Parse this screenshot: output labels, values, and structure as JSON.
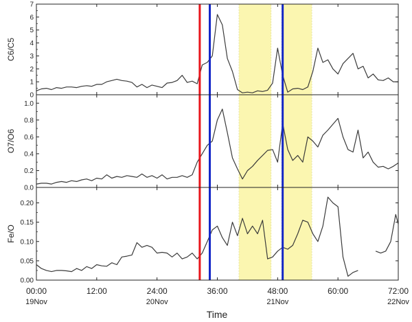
{
  "chart_data": {
    "type": "line",
    "xlabel": "Time",
    "x_ticks": [
      {
        "value": 0,
        "label": "00:00",
        "sublabel": "19Nov"
      },
      {
        "value": 12,
        "label": "12:00",
        "sublabel": ""
      },
      {
        "value": 24,
        "label": "24:00",
        "sublabel": "20Nov"
      },
      {
        "value": 36,
        "label": "36:00",
        "sublabel": ""
      },
      {
        "value": 48,
        "label": "48:00",
        "sublabel": "21Nov"
      },
      {
        "value": 60,
        "label": "60:00",
        "sublabel": ""
      },
      {
        "value": 72,
        "label": "72:00",
        "sublabel": "22Nov"
      }
    ],
    "xlim": [
      0,
      72
    ],
    "shaded_intervals": [
      [
        40.3,
        46.7
      ],
      [
        48.8,
        54.8
      ]
    ],
    "vertical_lines": [
      {
        "x": 32.5,
        "color": "#e8141b"
      },
      {
        "x": 34.5,
        "color": "#1427c8"
      },
      {
        "x": 49.0,
        "color": "#1427c8"
      }
    ],
    "panels": [
      {
        "ylabel": "C6/C5",
        "ylim": [
          0,
          7
        ],
        "yticks": [
          0,
          1,
          2,
          3,
          4,
          5,
          6,
          7
        ],
        "tick_labels": [
          "0",
          "1",
          "2",
          "3",
          "4",
          "5",
          "6",
          "7"
        ],
        "series": [
          {
            "points": [
              [
                0,
                0.3
              ],
              [
                1,
                0.45
              ],
              [
                2,
                0.5
              ],
              [
                3,
                0.4
              ],
              [
                4,
                0.55
              ],
              [
                5,
                0.5
              ],
              [
                6,
                0.6
              ],
              [
                7,
                0.6
              ],
              [
                8,
                0.55
              ],
              [
                9,
                0.65
              ],
              [
                10,
                0.7
              ],
              [
                11,
                0.65
              ],
              [
                12,
                0.8
              ],
              [
                13,
                0.8
              ],
              [
                14,
                1.0
              ],
              [
                15,
                1.1
              ],
              [
                16,
                1.2
              ],
              [
                17,
                1.1
              ],
              [
                18,
                1.05
              ],
              [
                19,
                0.95
              ],
              [
                20,
                0.6
              ],
              [
                21,
                0.8
              ],
              [
                22,
                0.55
              ],
              [
                23,
                0.75
              ],
              [
                24,
                0.65
              ],
              [
                25,
                0.55
              ],
              [
                26,
                0.9
              ],
              [
                27,
                0.95
              ],
              [
                28,
                1.1
              ],
              [
                29,
                1.5
              ],
              [
                30,
                0.95
              ],
              [
                31,
                1.05
              ],
              [
                32,
                0.85
              ],
              [
                33,
                2.3
              ],
              [
                34,
                2.5
              ],
              [
                35,
                3.0
              ],
              [
                36,
                6.2
              ],
              [
                37,
                5.4
              ],
              [
                38,
                2.8
              ],
              [
                39,
                1.8
              ],
              [
                40,
                0.4
              ],
              [
                41,
                0.15
              ],
              [
                42,
                0.2
              ],
              [
                43,
                0.15
              ],
              [
                44,
                0.3
              ],
              [
                45,
                0.25
              ],
              [
                46,
                0.35
              ],
              [
                47,
                0.9
              ],
              [
                48,
                3.6
              ],
              [
                49,
                1.5
              ],
              [
                50,
                0.2
              ],
              [
                51,
                0.45
              ],
              [
                52,
                0.5
              ],
              [
                53,
                0.4
              ],
              [
                54,
                0.6
              ],
              [
                55,
                1.8
              ],
              [
                56,
                3.6
              ],
              [
                57,
                2.5
              ],
              [
                58,
                2.7
              ],
              [
                59,
                2.0
              ],
              [
                60,
                1.6
              ],
              [
                61,
                2.4
              ],
              [
                62,
                2.8
              ],
              [
                63,
                3.2
              ],
              [
                64,
                2.0
              ],
              [
                65,
                2.2
              ],
              [
                66,
                1.3
              ],
              [
                67,
                1.6
              ],
              [
                68,
                1.15
              ],
              [
                69,
                1.1
              ],
              [
                70,
                1.3
              ],
              [
                71,
                1.0
              ],
              [
                72,
                1.0
              ]
            ]
          }
        ]
      },
      {
        "ylabel": "O7/O6",
        "ylim": [
          0,
          1.1
        ],
        "yticks": [
          0,
          0.2,
          0.4,
          0.6,
          0.8,
          1.0
        ],
        "tick_labels": [
          "0.0",
          "0.2",
          "0.4",
          "0.6",
          "0.8",
          "1.0"
        ],
        "series": [
          {
            "points": [
              [
                0,
                0.04
              ],
              [
                1,
                0.05
              ],
              [
                2,
                0.05
              ],
              [
                3,
                0.04
              ],
              [
                4,
                0.06
              ],
              [
                5,
                0.07
              ],
              [
                6,
                0.06
              ],
              [
                7,
                0.08
              ],
              [
                8,
                0.07
              ],
              [
                9,
                0.09
              ],
              [
                10,
                0.1
              ],
              [
                11,
                0.08
              ],
              [
                12,
                0.11
              ],
              [
                13,
                0.1
              ],
              [
                14,
                0.15
              ],
              [
                15,
                0.11
              ],
              [
                16,
                0.13
              ],
              [
                17,
                0.12
              ],
              [
                18,
                0.14
              ],
              [
                19,
                0.13
              ],
              [
                20,
                0.12
              ],
              [
                21,
                0.16
              ],
              [
                22,
                0.12
              ],
              [
                23,
                0.14
              ],
              [
                24,
                0.11
              ],
              [
                25,
                0.15
              ],
              [
                26,
                0.1
              ],
              [
                27,
                0.12
              ],
              [
                28,
                0.12
              ],
              [
                29,
                0.14
              ],
              [
                30,
                0.12
              ],
              [
                31,
                0.15
              ],
              [
                32,
                0.3
              ],
              [
                33,
                0.4
              ],
              [
                34,
                0.5
              ],
              [
                35,
                0.55
              ],
              [
                36,
                0.8
              ],
              [
                37,
                0.93
              ],
              [
                38,
                0.65
              ],
              [
                39,
                0.35
              ],
              [
                40,
                0.22
              ],
              [
                41,
                0.1
              ],
              [
                42,
                0.2
              ],
              [
                43,
                0.25
              ],
              [
                44,
                0.32
              ],
              [
                45,
                0.38
              ],
              [
                46,
                0.44
              ],
              [
                47,
                0.45
              ],
              [
                48,
                0.3
              ],
              [
                49,
                0.76
              ],
              [
                50,
                0.45
              ],
              [
                51,
                0.32
              ],
              [
                52,
                0.38
              ],
              [
                53,
                0.3
              ],
              [
                54,
                0.6
              ],
              [
                55,
                0.55
              ],
              [
                56,
                0.48
              ],
              [
                57,
                0.62
              ],
              [
                58,
                0.68
              ],
              [
                59,
                0.75
              ],
              [
                60,
                0.82
              ],
              [
                61,
                0.6
              ],
              [
                62,
                0.45
              ],
              [
                63,
                0.42
              ],
              [
                64,
                0.68
              ],
              [
                65,
                0.35
              ],
              [
                66,
                0.42
              ],
              [
                67,
                0.3
              ],
              [
                68,
                0.24
              ],
              [
                69,
                0.25
              ],
              [
                70,
                0.22
              ],
              [
                71,
                0.25
              ],
              [
                72,
                0.29
              ]
            ]
          }
        ]
      },
      {
        "ylabel": "Fe/O",
        "ylim": [
          0,
          0.24
        ],
        "yticks": [
          0,
          0.05,
          0.1,
          0.15,
          0.2
        ],
        "tick_labels": [
          "0.00",
          "0.05",
          "0.10",
          "0.15",
          "0.20"
        ],
        "series": [
          {
            "points": [
              [
                0,
                0.04
              ],
              [
                1,
                0.03
              ],
              [
                2,
                0.025
              ],
              [
                3,
                0.022
              ],
              [
                4,
                0.025
              ],
              [
                5,
                0.025
              ],
              [
                6,
                0.024
              ],
              [
                7,
                0.022
              ],
              [
                8,
                0.03
              ],
              [
                9,
                0.025
              ],
              [
                10,
                0.035
              ],
              [
                11,
                0.03
              ],
              [
                12,
                0.04
              ],
              [
                13,
                0.037
              ],
              [
                14,
                0.036
              ],
              [
                15,
                0.045
              ],
              [
                16,
                0.04
              ],
              [
                17,
                0.06
              ],
              [
                18,
                0.062
              ],
              [
                19,
                0.065
              ],
              [
                20,
                0.097
              ],
              [
                21,
                0.085
              ],
              [
                22,
                0.09
              ],
              [
                23,
                0.085
              ],
              [
                24,
                0.07
              ],
              [
                25,
                0.072
              ],
              [
                26,
                0.07
              ],
              [
                27,
                0.06
              ],
              [
                28,
                0.07
              ],
              [
                29,
                0.055
              ],
              [
                30,
                0.06
              ],
              [
                31,
                0.07
              ],
              [
                32,
                0.055
              ],
              [
                33,
                0.07
              ],
              [
                34,
                0.1
              ],
              [
                35,
                0.13
              ],
              [
                36,
                0.14
              ],
              [
                37,
                0.11
              ],
              [
                38,
                0.09
              ],
              [
                39,
                0.15
              ],
              [
                40,
                0.115
              ],
              [
                41,
                0.16
              ],
              [
                42,
                0.12
              ],
              [
                43,
                0.14
              ],
              [
                44,
                0.12
              ],
              [
                45,
                0.155
              ],
              [
                46,
                0.055
              ],
              [
                47,
                0.06
              ],
              [
                48,
                0.075
              ],
              [
                49,
                0.085
              ],
              [
                50,
                0.08
              ],
              [
                51,
                0.09
              ],
              [
                52,
                0.12
              ],
              [
                53,
                0.155
              ],
              [
                54,
                0.15
              ],
              [
                55,
                0.12
              ],
              [
                56,
                0.1
              ],
              [
                57,
                0.14
              ],
              [
                58,
                0.215
              ],
              [
                59,
                0.2
              ],
              [
                60,
                0.19
              ],
              [
                61,
                0.06
              ],
              [
                62,
                0.01
              ],
              [
                63,
                0.02
              ],
              [
                64,
                0.025
              ],
              null,
              [
                66,
                0.03
              ],
              null,
              [
                67.5,
                0.075
              ],
              [
                68.5,
                0.07
              ],
              [
                69.5,
                0.075
              ],
              [
                70.5,
                0.1
              ],
              [
                71.5,
                0.17
              ],
              [
                72,
                0.145
              ]
            ]
          }
        ]
      }
    ]
  }
}
